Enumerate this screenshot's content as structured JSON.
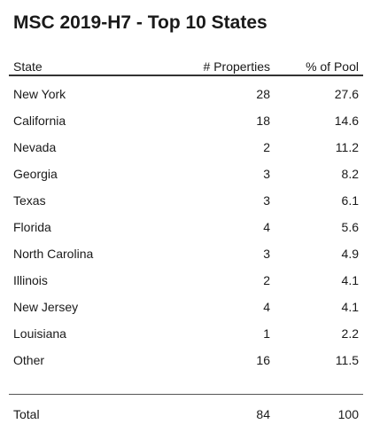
{
  "title": "MSC 2019-H7 - Top 10 States",
  "columns": {
    "state": "State",
    "properties": "# Properties",
    "pool": "% of Pool"
  },
  "rows": [
    {
      "state": "New York",
      "properties": "28",
      "pool": "27.6"
    },
    {
      "state": "California",
      "properties": "18",
      "pool": "14.6"
    },
    {
      "state": "Nevada",
      "properties": "2",
      "pool": "11.2"
    },
    {
      "state": "Georgia",
      "properties": "3",
      "pool": "8.2"
    },
    {
      "state": "Texas",
      "properties": "3",
      "pool": "6.1"
    },
    {
      "state": "Florida",
      "properties": "4",
      "pool": "5.6"
    },
    {
      "state": "North Carolina",
      "properties": "3",
      "pool": "4.9"
    },
    {
      "state": "Illinois",
      "properties": "2",
      "pool": "4.1"
    },
    {
      "state": "New Jersey",
      "properties": "4",
      "pool": "4.1"
    },
    {
      "state": "Louisiana",
      "properties": "1",
      "pool": "2.2"
    },
    {
      "state": "Other",
      "properties": "16",
      "pool": "11.5"
    }
  ],
  "total": {
    "label": "Total",
    "properties": "84",
    "pool": "100"
  }
}
